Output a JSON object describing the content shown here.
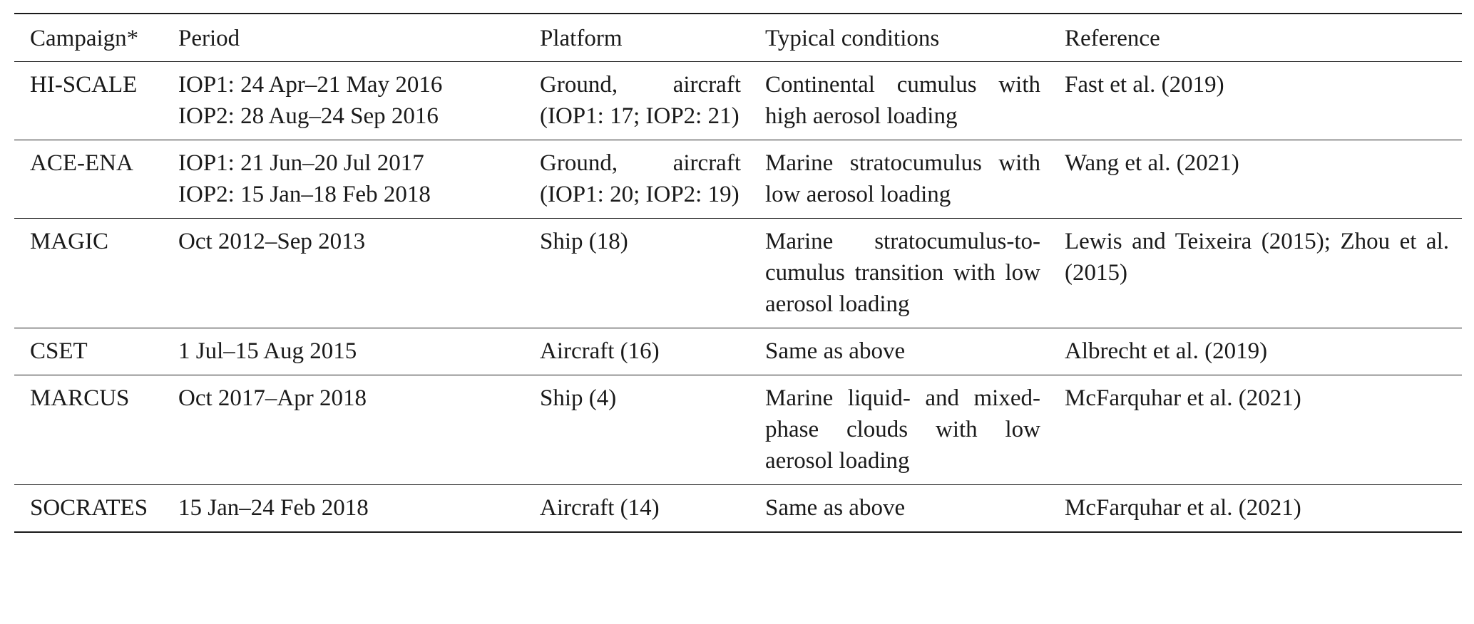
{
  "table": {
    "headers": [
      "Campaign*",
      "Period",
      "Platform",
      "Typical conditions",
      "Reference"
    ],
    "rows": [
      {
        "campaign": "HI-SCALE",
        "period": [
          "IOP1: 24 Apr–21 May 2016",
          "IOP2: 28 Aug–24 Sep 2016"
        ],
        "platform": "Ground, aircraft (IOP1: 17; IOP2: 21)",
        "conditions": "Continental cumulus with high aerosol loading",
        "reference": "Fast et al. (2019)"
      },
      {
        "campaign": "ACE-ENA",
        "period": [
          "IOP1: 21 Jun–20 Jul 2017",
          "IOP2: 15 Jan–18 Feb 2018"
        ],
        "platform": "Ground, aircraft (IOP1: 20; IOP2: 19)",
        "conditions": "Marine stratocumulus with low aerosol loading",
        "reference": "Wang et al. (2021)"
      },
      {
        "campaign": "MAGIC",
        "period": [
          "Oct 2012–Sep 2013"
        ],
        "platform": "Ship (18)",
        "conditions": "Marine stratocumulus-to-cumulus transition with low aerosol loading",
        "reference": "Lewis and Teixeira (2015); Zhou et al. (2015)"
      },
      {
        "campaign": "CSET",
        "period": [
          "1 Jul–15 Aug 2015"
        ],
        "platform": "Aircraft (16)",
        "conditions": "Same as above",
        "reference": "Albrecht et al. (2019)"
      },
      {
        "campaign": "MARCUS",
        "period": [
          "Oct 2017–Apr 2018"
        ],
        "platform": "Ship (4)",
        "conditions": "Marine liquid- and mixed-phase clouds with low aerosol loading",
        "reference": "McFarquhar et al. (2021)"
      },
      {
        "campaign": "SOCRATES",
        "period": [
          "15 Jan–24 Feb 2018"
        ],
        "platform": "Aircraft (14)",
        "conditions": "Same as above",
        "reference": "McFarquhar et al. (2021)"
      }
    ]
  }
}
